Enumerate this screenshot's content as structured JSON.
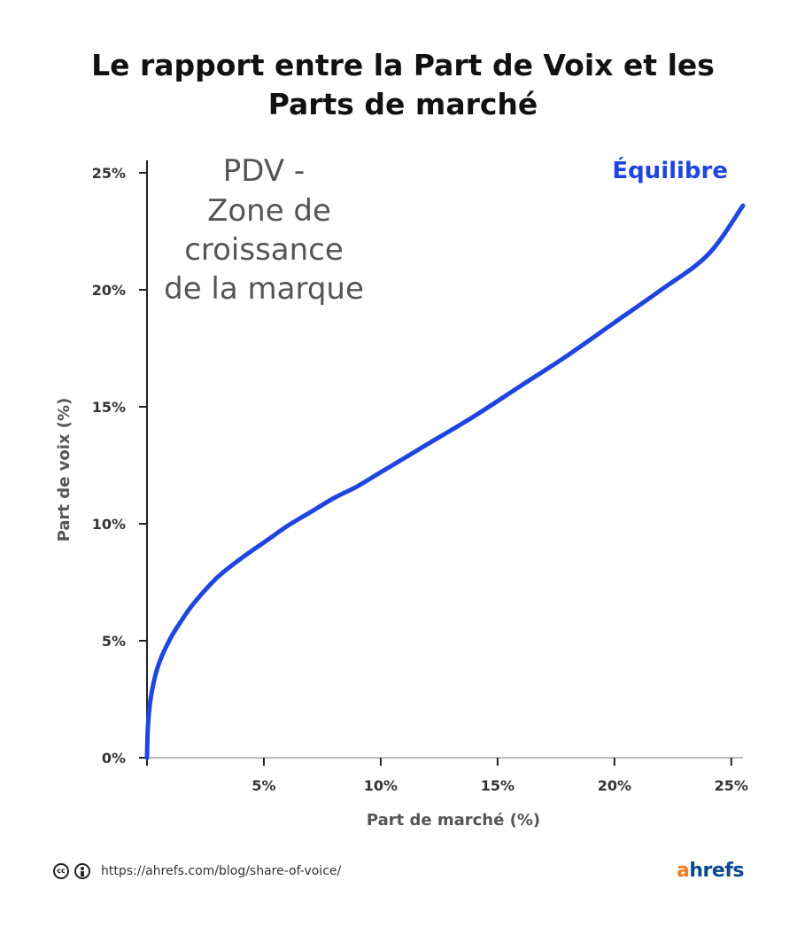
{
  "title_line1": "Le rapport entre la Part de Voix et les",
  "title_line2": "Parts de marché",
  "chart_data": {
    "type": "line",
    "xlabel": "Part de marché (%)",
    "ylabel": "Part de voix (%)",
    "xlim": [
      0,
      25.5
    ],
    "ylim": [
      0,
      25
    ],
    "x_ticks": [
      "5%",
      "10%",
      "15%",
      "20%",
      "25%"
    ],
    "y_ticks": [
      "0%",
      "5%",
      "10%",
      "15%",
      "20%",
      "25%"
    ],
    "grid": false,
    "series": [
      {
        "name": "Équilibre",
        "color": "#1f45e0",
        "x": [
          0,
          0.05,
          0.2,
          0.5,
          1,
          1.5,
          2,
          3,
          4,
          5,
          6,
          7,
          8,
          9,
          10,
          12,
          14,
          16,
          18,
          20,
          22,
          24,
          25.5
        ],
        "y": [
          0,
          1.5,
          2.8,
          4.0,
          5.1,
          5.9,
          6.6,
          7.7,
          8.5,
          9.2,
          9.9,
          10.5,
          11.1,
          11.6,
          12.2,
          13.4,
          14.6,
          15.9,
          17.2,
          18.6,
          20.0,
          21.5,
          23.6
        ]
      }
    ],
    "annotations": [
      "PDV -",
      "Zone de",
      "croissance",
      "de la marque"
    ]
  },
  "footer": {
    "url": "https://ahrefs.com/blog/share-of-voice/",
    "cc_icon": "creative-commons-icon",
    "by_icon": "attribution-icon"
  },
  "brand": {
    "first": "a",
    "rest": "hrefs",
    "color_a": "#f47c20",
    "color_rest": "#0a4a8c"
  }
}
